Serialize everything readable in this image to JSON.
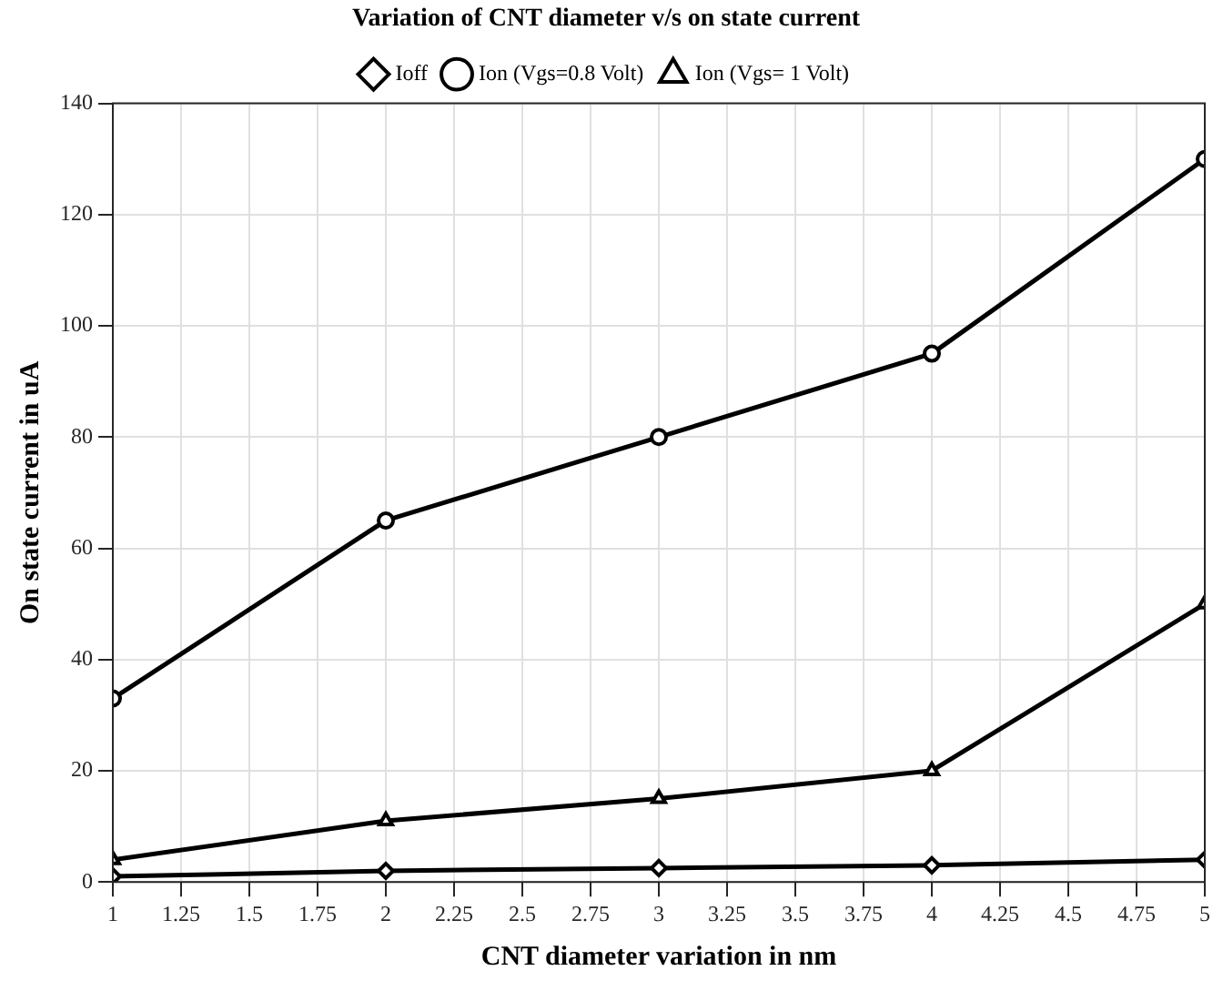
{
  "chart_data": {
    "type": "line",
    "title": "Variation of CNT diameter v/s on state current",
    "xlabel": "CNT diameter variation in nm",
    "ylabel": "On state current in uA",
    "x": [
      1,
      2,
      3,
      4,
      5
    ],
    "series": [
      {
        "name": "Ioff",
        "color": "#000000",
        "marker": "diamond",
        "values": [
          1,
          2,
          2.5,
          3,
          4
        ]
      },
      {
        "name": "Ion (Vgs=0.8 Volt)",
        "color": "#000000",
        "marker": "circle",
        "values": [
          33,
          65,
          80,
          95,
          130
        ]
      },
      {
        "name": "Ion (Vgs= 1 Volt)",
        "color": "#000000",
        "marker": "triangle",
        "values": [
          4,
          11,
          15,
          20,
          50
        ]
      }
    ],
    "xlim": [
      1,
      5
    ],
    "xticks": [
      1,
      1.25,
      1.5,
      1.75,
      2,
      2.25,
      2.5,
      2.75,
      3,
      3.25,
      3.5,
      3.75,
      4,
      4.25,
      4.5,
      4.75,
      5
    ],
    "ylim": [
      0,
      140
    ],
    "yticks": [
      0,
      20,
      40,
      60,
      80,
      100,
      120,
      140
    ],
    "grid": true,
    "legend": "top",
    "line_style": "solid"
  }
}
